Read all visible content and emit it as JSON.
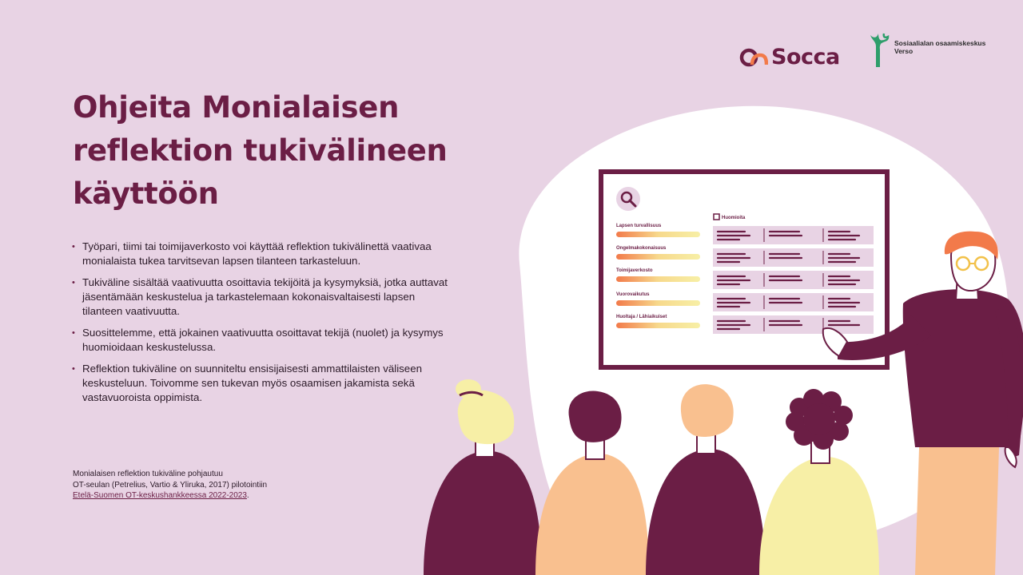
{
  "logos": {
    "socca": "Socca",
    "verso": "Sosiaalialan osaamiskeskus\nVerso"
  },
  "title": "Ohjeita Monialaisen reflektion tukivälineen käyttöön",
  "bullets": [
    "Työpari, tiimi tai toimijaverkosto voi käyttää reflektion tukivälinettä vaativaa monialaista tukea tarvitsevan lapsen tilanteen tarkasteluun.",
    "Tukiväline sisältää vaativuutta osoittavia tekijöitä ja kysymyksiä, jotka auttavat jäsentämään keskustelua ja tarkastelemaan kokonaisvaltaisesti lapsen tilanteen vaativuutta.",
    "Suosittelemme, että jokainen vaativuutta osoittavat tekijä (nuolet) ja kysymys huomioidaan keskustelussa.",
    "Reflektion tukiväline on suunniteltu ensisijaisesti ammattilaisten väliseen keskusteluun. Toivomme sen tukevan myös osaamisen jakamista sekä vastavuoroista oppimista."
  ],
  "footnote": {
    "line1": "Monialaisen reflektion tukiväline pohjautuu",
    "line2": "OT-seulan (Petrelius, Vartio & Yliruka, 2017) pilotointiin",
    "link": "Etelä-Suomen OT-keskushankkeessa 2022-2023",
    "end": "."
  },
  "screen": {
    "header": "Huomioita",
    "rows": [
      "Lapsen turvallisuus",
      "Ongelmakokonaisuus",
      "Toimijaverkosto",
      "Vuorovaikutus",
      "Huoltaja / Lähiaikuiset"
    ]
  },
  "colors": {
    "background": "#E8D3E4",
    "primary": "#6B1E45",
    "accent_orange": "#F27A4A",
    "accent_yellow": "#F7EFA6",
    "green": "#2E9E6B"
  },
  "icons": [
    "socca-logo-icon",
    "verso-logo-icon",
    "magnifier-icon",
    "checkbox-icon"
  ]
}
